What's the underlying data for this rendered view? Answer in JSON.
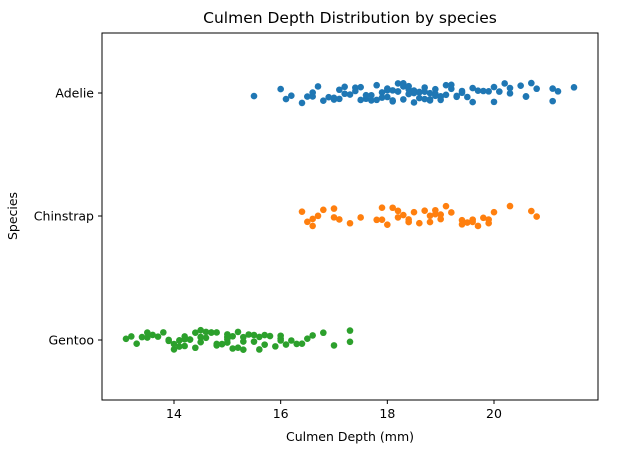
{
  "chart_data": {
    "type": "scatter",
    "subtype": "strip",
    "title": "Culmen Depth Distribution by species",
    "xlabel": "Culmen Depth (mm)",
    "ylabel": "Species",
    "xlim": [
      12.65,
      21.95
    ],
    "x_ticks": [
      14,
      16,
      18,
      20
    ],
    "categories": [
      "Adelie",
      "Chinstrap",
      "Gentoo"
    ],
    "grid": false,
    "series": [
      {
        "name": "Adelie",
        "color": "#1f77b4",
        "values": [
          15.5,
          16.0,
          16.2,
          16.4,
          16.5,
          16.6,
          16.7,
          16.8,
          16.9,
          17.0,
          17.0,
          17.1,
          17.1,
          17.2,
          17.3,
          17.4,
          17.5,
          17.6,
          17.7,
          17.8,
          17.8,
          17.9,
          17.9,
          18.0,
          18.0,
          18.1,
          18.1,
          18.1,
          18.2,
          18.2,
          18.3,
          18.3,
          18.4,
          18.4,
          18.5,
          18.5,
          18.5,
          18.6,
          18.6,
          18.7,
          18.7,
          18.8,
          18.8,
          18.9,
          18.9,
          19.0,
          19.0,
          19.1,
          19.1,
          19.2,
          19.3,
          19.4,
          19.5,
          19.6,
          19.7,
          19.8,
          19.9,
          20.0,
          20.1,
          20.2,
          20.3,
          20.5,
          20.6,
          20.7,
          20.8,
          21.1,
          21.2,
          21.5,
          16.1,
          16.6,
          17.2,
          17.5,
          17.7,
          18.0,
          18.2,
          18.4,
          18.6,
          18.8,
          19.0,
          19.2,
          19.4,
          19.6,
          20.0,
          20.3,
          21.1,
          17.6,
          18.3,
          18.9,
          19.3,
          17.4,
          18.7,
          20.6
        ]
      },
      {
        "name": "Chinstrap",
        "color": "#ff7f0e",
        "values": [
          16.4,
          16.5,
          16.6,
          16.7,
          16.8,
          17.0,
          17.1,
          17.3,
          17.5,
          17.8,
          17.9,
          18.0,
          18.1,
          18.2,
          18.3,
          18.4,
          18.5,
          18.6,
          18.7,
          18.8,
          18.9,
          19.0,
          19.1,
          19.2,
          19.4,
          19.5,
          19.6,
          19.7,
          19.8,
          19.9,
          20.0,
          20.3,
          20.7,
          20.8,
          16.6,
          17.9,
          18.4,
          18.8,
          19.0,
          19.4,
          19.6,
          17.0,
          18.2,
          18.9,
          19.9
        ]
      },
      {
        "name": "Gentoo",
        "color": "#2ca02c",
        "values": [
          13.1,
          13.2,
          13.3,
          13.4,
          13.5,
          13.6,
          13.7,
          13.8,
          13.9,
          14.0,
          14.0,
          14.1,
          14.1,
          14.2,
          14.2,
          14.3,
          14.3,
          14.4,
          14.4,
          14.5,
          14.5,
          14.5,
          14.6,
          14.6,
          14.7,
          14.7,
          14.8,
          14.8,
          14.9,
          14.9,
          15.0,
          15.0,
          15.0,
          15.1,
          15.1,
          15.2,
          15.2,
          15.3,
          15.3,
          15.4,
          15.5,
          15.5,
          15.6,
          15.7,
          15.7,
          15.8,
          15.9,
          16.0,
          16.0,
          16.1,
          16.2,
          16.3,
          16.4,
          16.6,
          16.8,
          17.0,
          17.3,
          13.5,
          13.9,
          14.2,
          14.5,
          14.8,
          15.0,
          15.3,
          15.6,
          16.0,
          16.5,
          17.3
        ]
      }
    ]
  }
}
